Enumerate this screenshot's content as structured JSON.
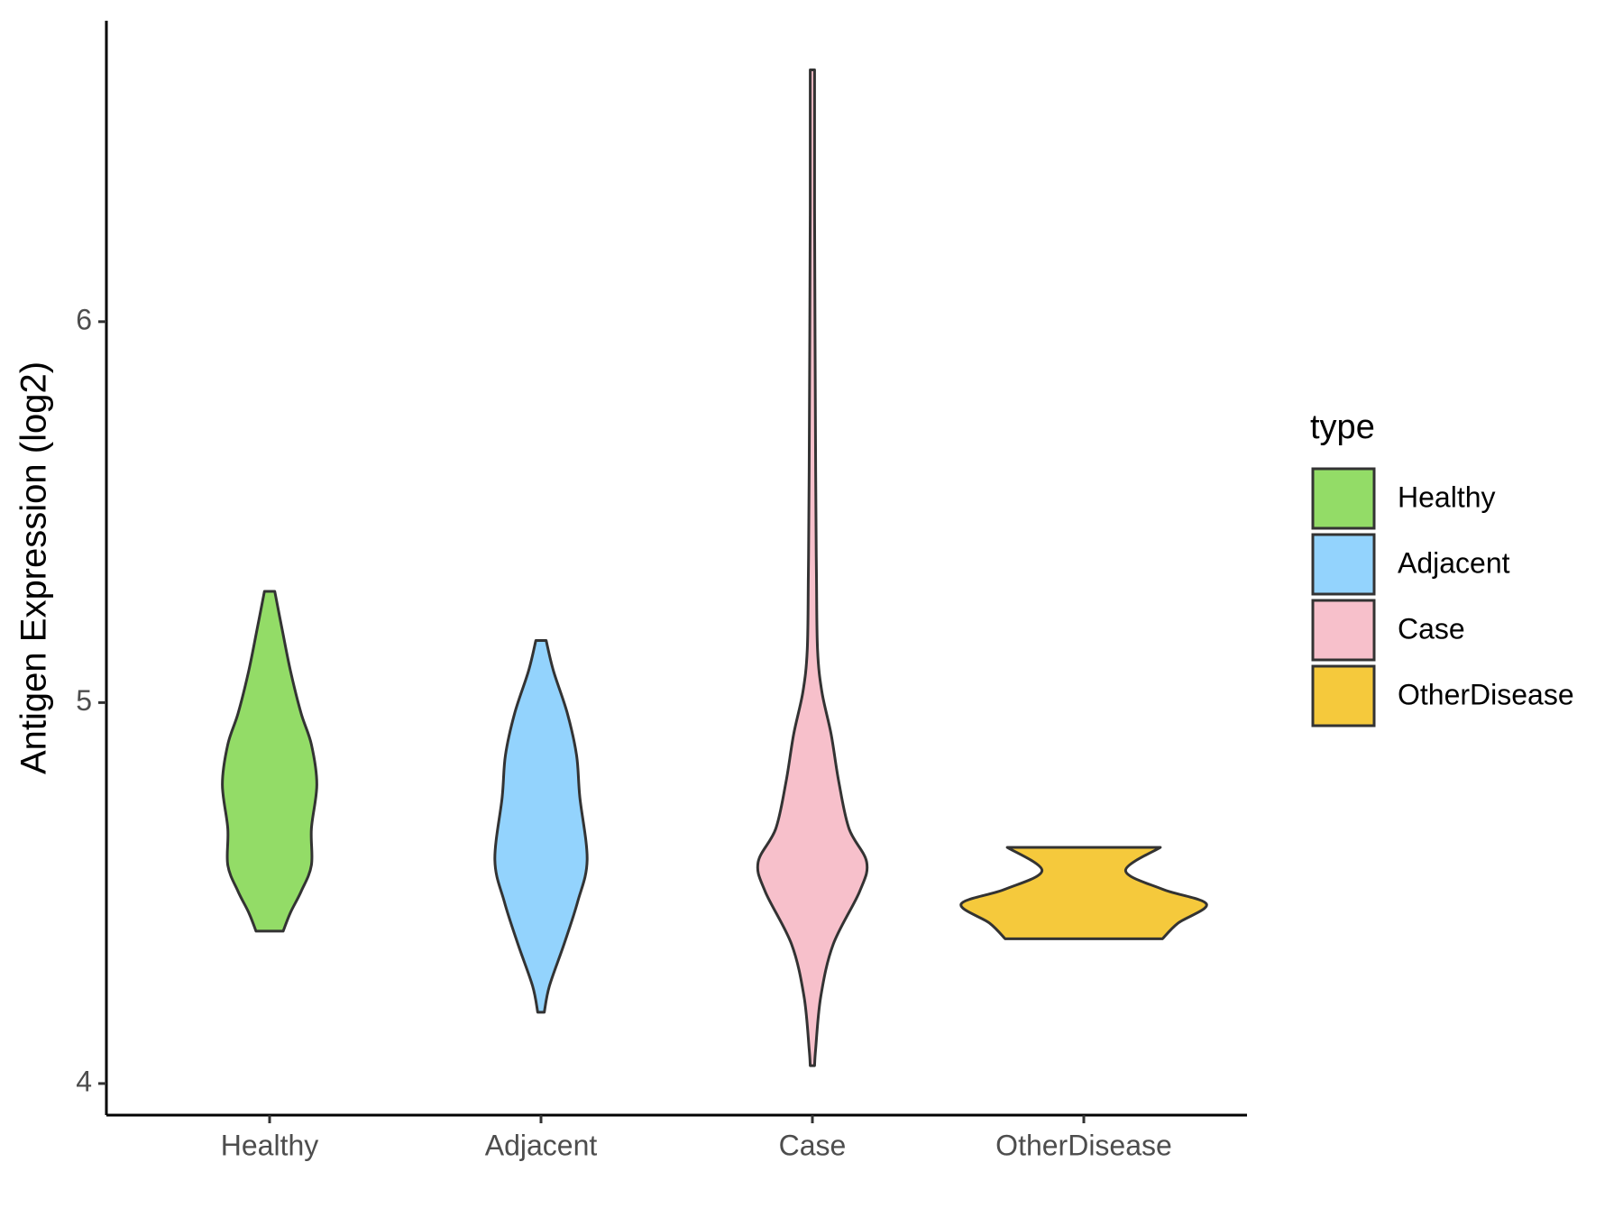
{
  "chart_data": {
    "type": "violin",
    "y_label": "Antigen Expression (log2)",
    "categories": [
      "Healthy",
      "Adjacent",
      "Case",
      "OtherDisease"
    ],
    "legend_title": "type",
    "legend_position": "right",
    "ylim": [
      3.917,
      6.79
    ],
    "yticks": [
      4,
      5,
      6
    ],
    "series": [
      {
        "name": "Healthy",
        "color": "#93dc67",
        "y": [
          5.292,
          5.193,
          5.083,
          4.972,
          4.89,
          4.785,
          4.669,
          4.573,
          4.504,
          4.449,
          4.4
        ],
        "half_width": [
          0.019,
          0.046,
          0.077,
          0.116,
          0.154,
          0.174,
          0.154,
          0.154,
          0.116,
          0.077,
          0.05
        ]
      },
      {
        "name": "Adjacent",
        "color": "#93d3fd",
        "y": [
          5.163,
          5.083,
          4.972,
          4.862,
          4.752,
          4.587,
          4.477,
          4.366,
          4.256,
          4.187
        ],
        "half_width": [
          0.019,
          0.046,
          0.097,
          0.131,
          0.143,
          0.17,
          0.135,
          0.085,
          0.031,
          0.012
        ]
      },
      {
        "name": "Case",
        "color": "#f7c0cb",
        "y": [
          6.661,
          6.295,
          5.606,
          5.331,
          5.138,
          5.028,
          4.917,
          4.793,
          4.669,
          4.581,
          4.504,
          4.366,
          4.229,
          4.091,
          4.047
        ],
        "half_width": [
          0.008,
          0.008,
          0.012,
          0.015,
          0.019,
          0.035,
          0.069,
          0.097,
          0.135,
          0.2,
          0.174,
          0.077,
          0.031,
          0.012,
          0.008
        ]
      },
      {
        "name": "OtherDisease",
        "color": "#f5c93c",
        "y": [
          4.62,
          4.559,
          4.51,
          4.471,
          4.421,
          4.38
        ],
        "half_width": [
          0.282,
          0.154,
          0.29,
          0.452,
          0.347,
          0.29
        ]
      }
    ]
  }
}
